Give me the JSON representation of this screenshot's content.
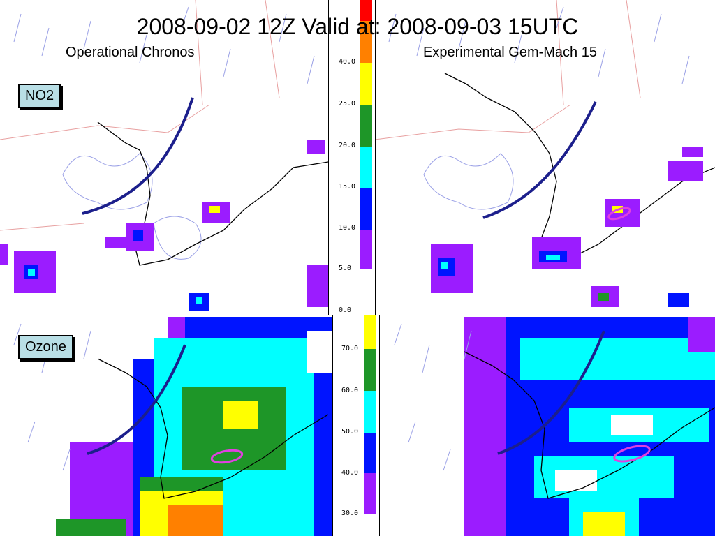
{
  "title": "2008-09-02 12Z Valid at:  2008-09-03 15UTC",
  "left_model": "Operational Chronos",
  "right_model": "Experimental Gem-Mach 15",
  "rows": [
    {
      "label": "NO2"
    },
    {
      "label": "Ozone"
    }
  ],
  "no2_colorbar": {
    "ticks": [
      "40.0",
      "25.0",
      "20.0",
      "15.0",
      "10.0",
      "5.0",
      "0.0"
    ],
    "colors": [
      "#ff0000",
      "#ff8000",
      "#ffff00",
      "#1e9628",
      "#00ffff",
      "#0014ff",
      "#9b1cff"
    ]
  },
  "ozone_colorbar": {
    "ticks": [
      "70.0",
      "60.0",
      "50.0",
      "40.0",
      "30.0"
    ],
    "colors": [
      "#ffff00",
      "#1e9628",
      "#00ffff",
      "#0014ff",
      "#9b1cff"
    ]
  },
  "colors": {
    "front_line": "#1c1f8c",
    "coast": "#000000",
    "lakes": "#7a7fd9",
    "borders": "#e8a0a0",
    "highlight": "#e040e0"
  }
}
